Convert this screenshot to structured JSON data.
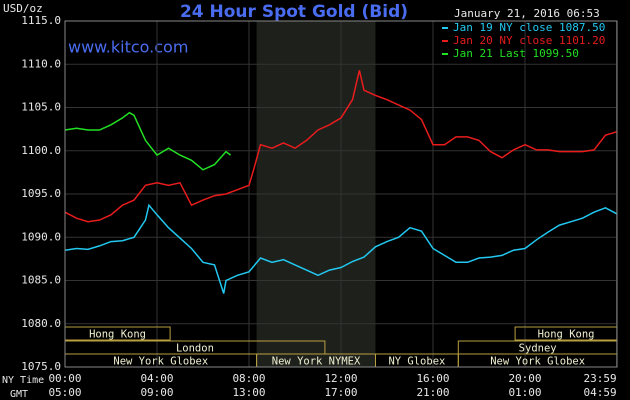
{
  "chart_data": {
    "type": "line",
    "title": "24 Hour Spot Gold (Bid)",
    "watermark": "www.kitco.com",
    "timestamp": "January 21, 2016 06:53",
    "y_label": "USD/oz",
    "x_label": "NY Time",
    "x2_label": "GMT",
    "ylim": [
      1075,
      1115
    ],
    "yticks": [
      {
        "value": 1075,
        "label": "1075.0"
      },
      {
        "value": 1080,
        "label": "1080.0"
      },
      {
        "value": 1085,
        "label": "1085.0"
      },
      {
        "value": 1090,
        "label": "1090.0"
      },
      {
        "value": 1095,
        "label": "1095.0"
      },
      {
        "value": 1100,
        "label": "1100.0"
      },
      {
        "value": 1105,
        "label": "1105.0"
      },
      {
        "value": 1110,
        "label": "1110.0"
      },
      {
        "value": 1115,
        "label": "1115.0"
      }
    ],
    "xlim": [
      0,
      24
    ],
    "xticks": [
      {
        "value": 0,
        "label": "00:00"
      },
      {
        "value": 4,
        "label": "04:00"
      },
      {
        "value": 8,
        "label": "08:00"
      },
      {
        "value": 12,
        "label": "12:00"
      },
      {
        "value": 16,
        "label": "16:00"
      },
      {
        "value": 20,
        "label": "20:00"
      },
      {
        "value": 23.983,
        "label": "23:59"
      }
    ],
    "x2ticks": [
      "05:00",
      "09:00",
      "13:00",
      "17:00",
      "21:00",
      "01:00",
      "04:59"
    ],
    "grid": true,
    "shaded_range": [
      8.33,
      13.5
    ],
    "sessions": [
      {
        "label": "Hong Kong",
        "row": 0,
        "start": 0,
        "end": 4.57
      },
      {
        "label": "Hong Kong",
        "row": 0,
        "start": 19.57,
        "end": 24
      },
      {
        "label": "London",
        "row": 1,
        "start": 0,
        "end": 11.3
      },
      {
        "label": "Sydney",
        "row": 1,
        "start": 17.1,
        "end": 24
      },
      {
        "label": "New York Globex",
        "row": 2,
        "start": 0,
        "end": 8.33
      },
      {
        "label": "New York NYMEX",
        "row": 2,
        "start": 8.33,
        "end": 13.5
      },
      {
        "label": "NY Globex",
        "row": 2,
        "start": 13.5,
        "end": 17.1
      },
      {
        "label": "New York Globex",
        "row": 2,
        "start": 17.1,
        "end": 24
      }
    ],
    "series": [
      {
        "name": "Jan 19 NY close 1087.50",
        "color": "#22c8f0",
        "x": [
          0,
          0.5,
          1,
          1.5,
          2,
          2.5,
          3,
          3.5,
          3.65,
          4,
          4.5,
          5,
          5.5,
          6,
          6.5,
          6.9,
          7,
          7.5,
          8,
          8.5,
          9,
          9.5,
          10,
          10.5,
          11,
          11.5,
          12,
          12.5,
          13,
          13.5,
          14,
          14.5,
          15,
          15.5,
          16,
          16.5,
          17,
          17.5,
          18,
          18.5,
          19,
          19.5,
          20,
          20.5,
          21,
          21.5,
          22,
          22.5,
          23,
          23.5,
          24
        ],
        "values": [
          1088.5,
          1088.7,
          1088.6,
          1089.0,
          1089.5,
          1089.6,
          1090.0,
          1092.0,
          1093.7,
          1092.6,
          1091.1,
          1089.9,
          1088.7,
          1087.1,
          1086.8,
          1083.5,
          1085.0,
          1085.6,
          1086.0,
          1087.6,
          1087.1,
          1087.4,
          1086.8,
          1086.2,
          1085.6,
          1086.2,
          1086.5,
          1087.2,
          1087.7,
          1088.9,
          1089.5,
          1090.0,
          1091.1,
          1090.7,
          1088.7,
          1087.9,
          1087.1,
          1087.1,
          1087.6,
          1087.7,
          1087.9,
          1088.5,
          1088.7,
          1089.7,
          1090.6,
          1091.4,
          1091.8,
          1092.2,
          1092.9,
          1093.4,
          1092.7
        ]
      },
      {
        "name": "Jan 20 NY close 1101.20",
        "color": "#e81c1c",
        "x": [
          0,
          0.5,
          1,
          1.5,
          2,
          2.5,
          3,
          3.5,
          4,
          4.5,
          5,
          5.5,
          6,
          6.5,
          7,
          7.5,
          8,
          8.2,
          8.5,
          9,
          9.5,
          10,
          10.5,
          11,
          11.5,
          12,
          12.5,
          12.8,
          13,
          13.5,
          14,
          14.5,
          15,
          15.5,
          16,
          16.5,
          17,
          17.5,
          18,
          18.5,
          19,
          19.5,
          20,
          20.5,
          21,
          21.5,
          22,
          22.5,
          23,
          23.5,
          24
        ],
        "values": [
          1092.9,
          1092.2,
          1091.8,
          1092.0,
          1092.6,
          1093.7,
          1094.3,
          1096.0,
          1096.3,
          1096.0,
          1096.3,
          1093.7,
          1094.3,
          1094.8,
          1095.0,
          1095.5,
          1096.0,
          1097.8,
          1100.7,
          1100.3,
          1100.9,
          1100.3,
          1101.2,
          1102.4,
          1103.0,
          1103.8,
          1105.9,
          1109.3,
          1107.0,
          1106.4,
          1105.9,
          1105.3,
          1104.7,
          1103.6,
          1100.7,
          1100.7,
          1101.6,
          1101.6,
          1101.2,
          1099.9,
          1099.2,
          1100.1,
          1100.7,
          1100.1,
          1100.1,
          1099.9,
          1099.9,
          1099.9,
          1100.1,
          1101.8,
          1102.2
        ]
      },
      {
        "name": "Jan 21 Last 1099.50",
        "color": "#22e022",
        "x": [
          0,
          0.5,
          1,
          1.5,
          2,
          2.5,
          2.8,
          3,
          3.5,
          4,
          4.5,
          5,
          5.5,
          6,
          6.5,
          7,
          7.2
        ],
        "values": [
          1102.4,
          1102.6,
          1102.4,
          1102.4,
          1103.0,
          1103.8,
          1104.4,
          1104.1,
          1101.2,
          1099.5,
          1100.3,
          1099.5,
          1098.9,
          1097.8,
          1098.4,
          1099.9,
          1099.5
        ]
      }
    ]
  }
}
